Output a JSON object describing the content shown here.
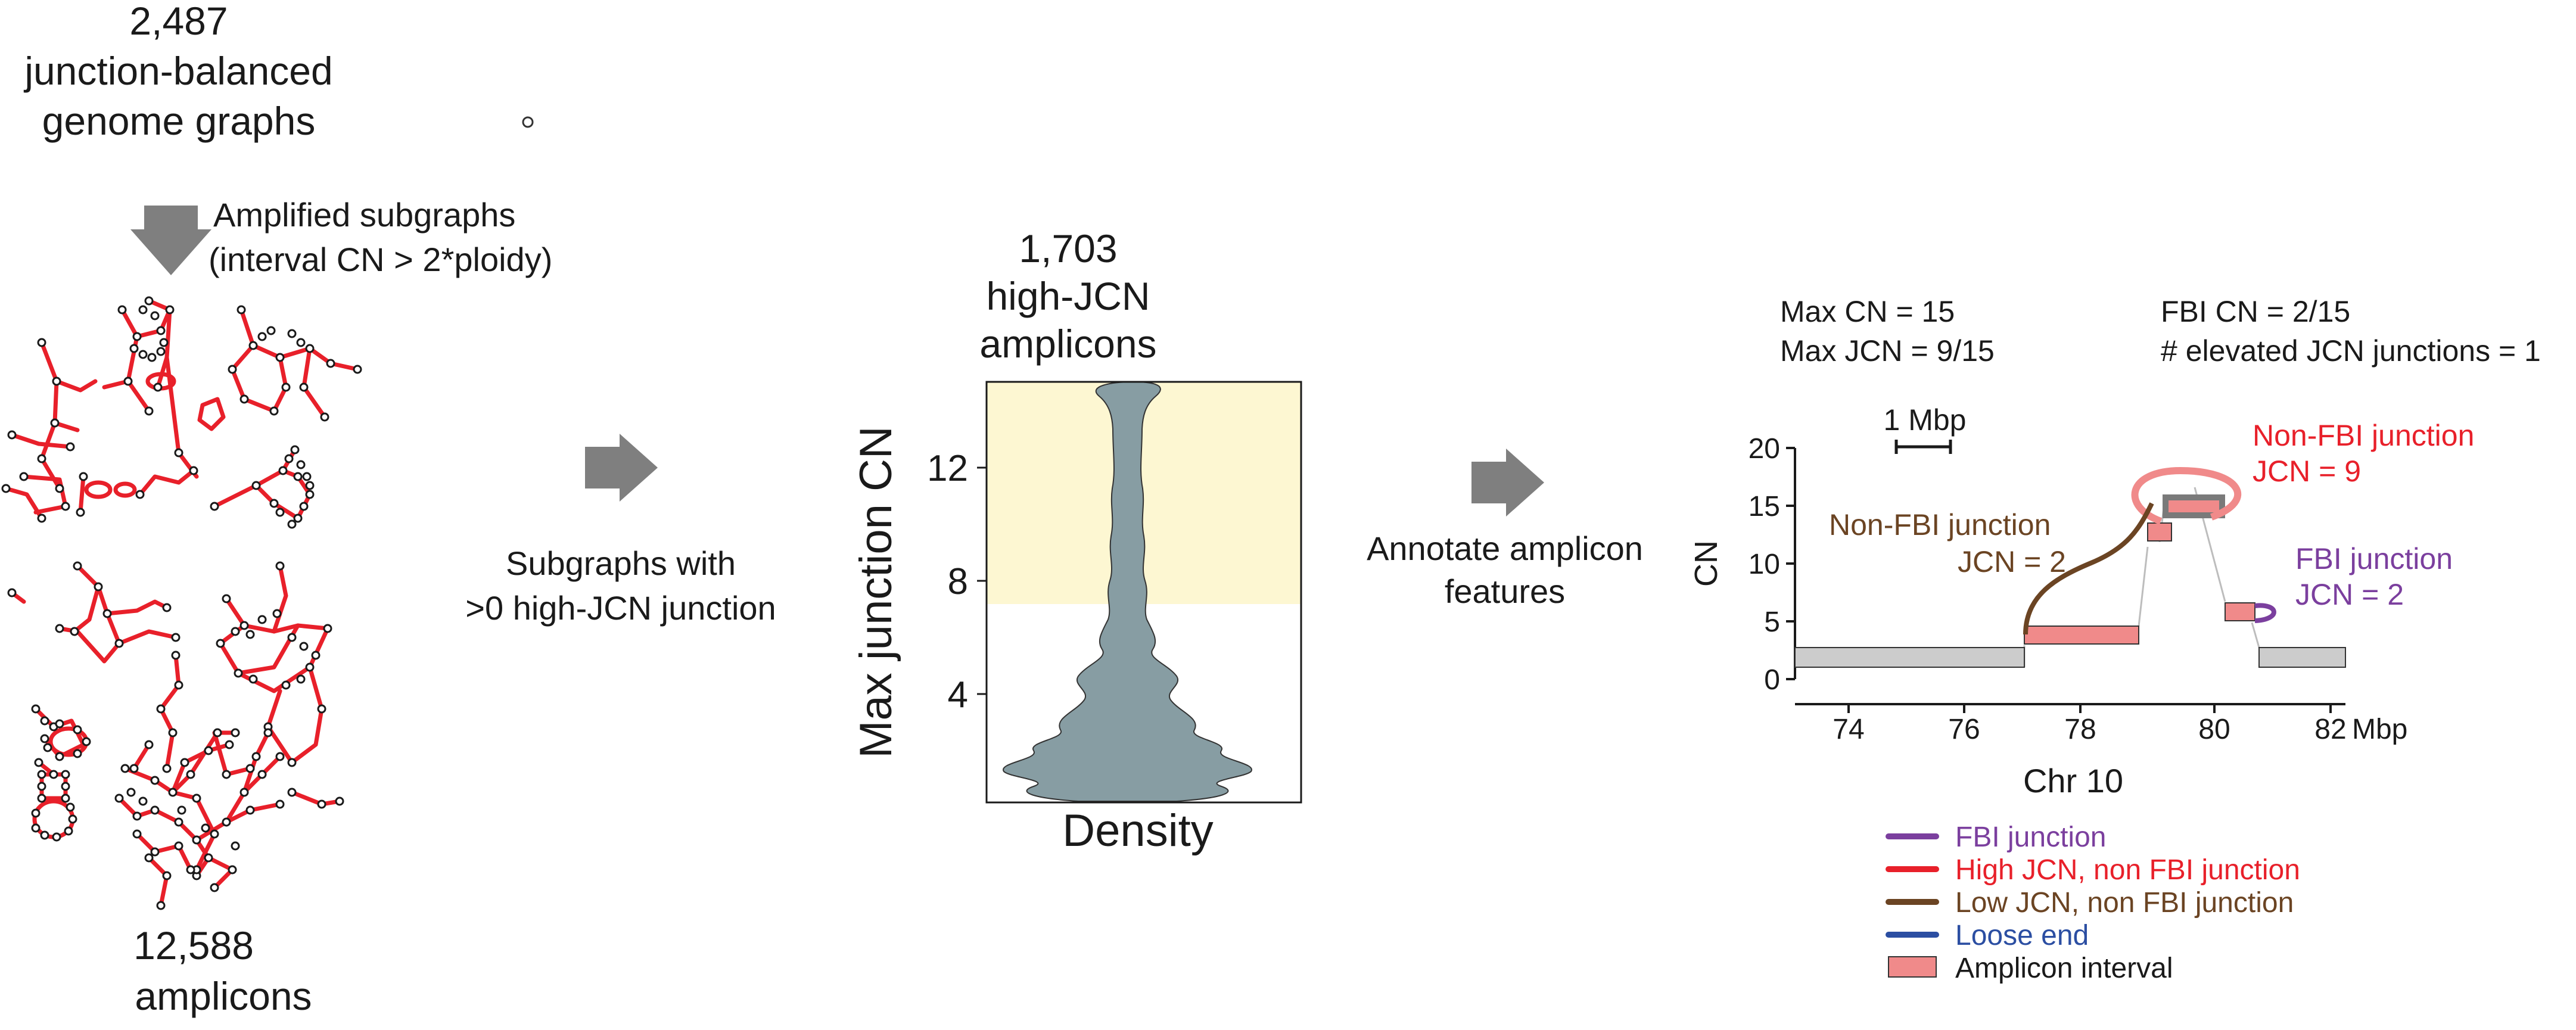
{
  "panel1": {
    "count_line1": "2,487",
    "count_line2": "junction-balanced",
    "count_line3": "genome graphs",
    "arrow_label_line1": "Amplified subgraphs",
    "arrow_label_line2": "(interval CN > 2*ploidy)",
    "bottom_line1": "12,588",
    "bottom_line2": "amplicons"
  },
  "arrow1_label": {
    "line1": "Subgraphs with",
    "line2": ">0 high-JCN junction"
  },
  "violin": {
    "title_line1": "1,703",
    "title_line2": "high-JCN",
    "title_line3": "amplicons",
    "ylabel": "Max junction CN",
    "xlabel": "Density",
    "yticks": [
      "12",
      "8",
      "4"
    ]
  },
  "arrow2_label": {
    "line1": "Annotate amplicon",
    "line2": "features"
  },
  "example": {
    "stat1": "Max CN = 15",
    "stat2": "Max JCN = 9/15",
    "stat3": "FBI CN = 2/15",
    "stat4": "# elevated JCN junctions = 1",
    "scalebar": "1 Mbp",
    "ylabel": "CN",
    "yticks": [
      "20",
      "15",
      "10",
      "5",
      "0"
    ],
    "xticks": [
      "74",
      "76",
      "78",
      "80",
      "82"
    ],
    "xunit": "Mbp",
    "xlabel": "Chr 10",
    "ann_nonfbi_red_line1": "Non-FBI junction",
    "ann_nonfbi_red_line2": "JCN = 9",
    "ann_nonfbi_brown_line1": "Non-FBI junction",
    "ann_nonfbi_brown_line2": "JCN = 2",
    "ann_fbi_line1": "FBI junction",
    "ann_fbi_line2": "JCN = 2"
  },
  "legend": [
    {
      "label": "FBI junction",
      "color": "#7b3f9e"
    },
    {
      "label": "High JCN, non FBI junction",
      "color": "#e8202a"
    },
    {
      "label": "Low JCN, non FBI junction",
      "color": "#6b4423"
    },
    {
      "label": "Loose end",
      "color": "#2b4ea2"
    },
    {
      "label": "Amplicon interval",
      "color": "#f08a8a"
    }
  ],
  "colors": {
    "arrow": "#7f7f7f",
    "graph_edge": "#e8202a",
    "graph_node": "#1a1a1a",
    "highlight": "#fdf7d2",
    "violin": "#879da3",
    "interval_gray": "#cccccc",
    "interval_pink": "#f08a8a"
  }
}
